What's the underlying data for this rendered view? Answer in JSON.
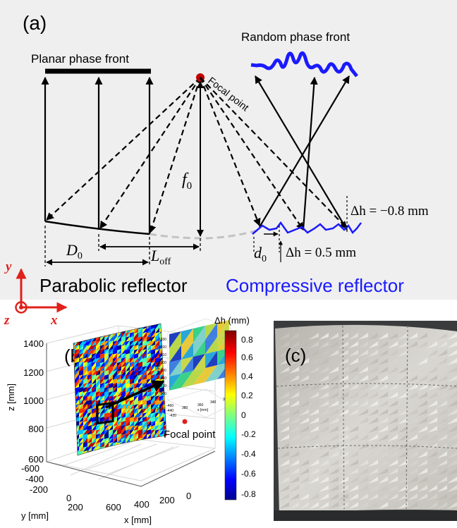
{
  "panel_a": {
    "label": "(a)",
    "planar_phase_front": "Planar phase front",
    "random_phase_front": "Random phase front",
    "focal_point": "Focal point",
    "f0_sym": "f",
    "f0_sub": "0",
    "D0_sym": "D",
    "D0_sub": "0",
    "Loff_sym": "L",
    "Loff_sub": "off",
    "d0_sym": "d",
    "d0_sub": "0",
    "dh_neg": "Δh = −0.8 mm",
    "dh_pos": "Δh = 0.5 mm",
    "parabolic_reflector": "Parabolic reflector",
    "compressive_reflector": "Compressive reflector",
    "colors": {
      "background": "#efefef",
      "compressive": "#1a1aff",
      "focal_dot": "#c00000",
      "axis_red": "#e0201a"
    }
  },
  "axes_triad": {
    "y": "y",
    "z": "z",
    "x": "x"
  },
  "panel_b": {
    "label": "(b)",
    "z_label": "z [mm]",
    "y_label": "y [mm]",
    "x_label": "x [mm]",
    "z_ticks": [
      "1400",
      "1200",
      "1000",
      "800",
      "600"
    ],
    "y_ticks": [
      "-600",
      "-400",
      "-200",
      "0",
      "200"
    ],
    "x_ticks": [
      "600",
      "400",
      "200",
      "0"
    ],
    "focal_point": "Focal point",
    "inset_z_ticks": [
      "1030",
      "1020",
      "1010",
      "1000",
      "990",
      "980",
      "970",
      "960"
    ],
    "inset_y_ticks": [
      "-460",
      "-440",
      "-420"
    ],
    "inset_x_ticks": [
      "380",
      "360",
      "340",
      "320"
    ],
    "inset_y_label": "y [mm]",
    "inset_x_label": "x [mm]",
    "inset_z_label": "z [mm]",
    "colorbar_title": "Δh (mm)",
    "colorbar_ticks": [
      "0.8",
      "0.6",
      "0.4",
      "0.2",
      "0",
      "-0.2",
      "-0.4",
      "-0.6",
      "-0.8"
    ]
  },
  "panel_c": {
    "label": "(c)"
  }
}
